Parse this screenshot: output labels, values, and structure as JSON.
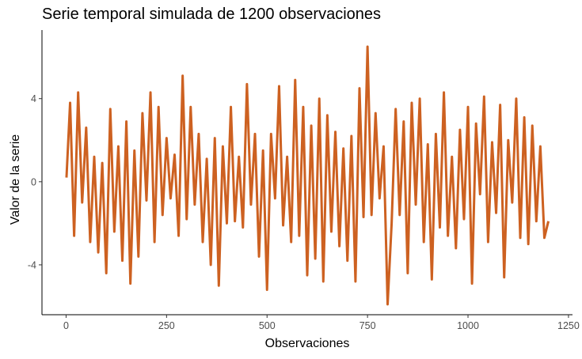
{
  "chart_data": {
    "type": "line",
    "title": "Serie temporal simulada de 1200 observaciones",
    "xlabel": "Observaciones",
    "ylabel": "Valor de la serie",
    "xlim": [
      -60,
      1260
    ],
    "ylim": [
      -6.4,
      7.3
    ],
    "x_ticks": [
      0,
      250,
      500,
      750,
      1000,
      1250
    ],
    "x_tick_labels": [
      "0",
      "250",
      "500",
      "750",
      "1000",
      "1250"
    ],
    "y_ticks": [
      -4,
      0,
      4
    ],
    "y_tick_labels": [
      "-4",
      "0",
      "4"
    ],
    "grid": false,
    "legend": "none",
    "color": "#cd6121",
    "series": [
      {
        "x": [
          1,
          10,
          20,
          30,
          40,
          50,
          60,
          70,
          80,
          90,
          100,
          110,
          120,
          130,
          140,
          150,
          160,
          170,
          180,
          190,
          200,
          210,
          220,
          230,
          240,
          250,
          260,
          270,
          280,
          290,
          300,
          310,
          320,
          330,
          340,
          350,
          360,
          370,
          380,
          390,
          400,
          410,
          420,
          430,
          440,
          450,
          460,
          470,
          480,
          490,
          500,
          510,
          520,
          530,
          540,
          550,
          560,
          570,
          580,
          590,
          600,
          610,
          620,
          630,
          640,
          650,
          660,
          670,
          680,
          690,
          700,
          710,
          720,
          730,
          740,
          750,
          760,
          770,
          780,
          790,
          800,
          810,
          820,
          830,
          840,
          850,
          860,
          870,
          880,
          890,
          900,
          910,
          920,
          930,
          940,
          950,
          960,
          970,
          980,
          990,
          1000,
          1010,
          1020,
          1030,
          1040,
          1050,
          1060,
          1070,
          1080,
          1090,
          1100,
          1110,
          1120,
          1130,
          1140,
          1150,
          1160,
          1170,
          1180,
          1190,
          1200
        ],
        "y": [
          0.2,
          3.8,
          -2.6,
          4.3,
          -1.0,
          2.6,
          -2.9,
          1.2,
          -3.4,
          0.9,
          -4.4,
          3.5,
          -2.4,
          1.7,
          -3.8,
          2.9,
          -4.9,
          1.5,
          -3.6,
          3.3,
          -0.9,
          4.3,
          -2.9,
          3.6,
          -1.6,
          2.1,
          -0.8,
          1.3,
          -2.6,
          5.1,
          -1.8,
          3.6,
          -1.1,
          2.3,
          -2.9,
          1.1,
          -4.0,
          2.1,
          -5.0,
          1.7,
          -2.0,
          3.6,
          -1.9,
          1.2,
          -2.2,
          4.7,
          -1.1,
          2.3,
          -3.6,
          1.5,
          -5.2,
          2.3,
          -0.8,
          4.6,
          -2.1,
          1.2,
          -2.9,
          4.9,
          -2.6,
          3.6,
          -4.5,
          2.7,
          -3.7,
          4.0,
          -4.8,
          3.2,
          -2.4,
          2.4,
          -3.1,
          1.6,
          -3.8,
          2.2,
          -4.8,
          4.5,
          -1.7,
          6.5,
          -1.6,
          3.3,
          -0.8,
          1.7,
          -5.9,
          -2.0,
          3.5,
          -1.6,
          2.9,
          -4.4,
          3.8,
          -1.1,
          4.0,
          -2.9,
          1.8,
          -4.7,
          2.3,
          -2.2,
          4.3,
          -2.6,
          1.2,
          -3.2,
          2.5,
          -1.8,
          3.6,
          -4.9,
          2.8,
          -0.6,
          4.1,
          -2.9,
          1.9,
          -1.5,
          3.7,
          -4.6,
          2.0,
          -1.0,
          4.0,
          -2.7,
          3.1,
          -3.0,
          2.7,
          -1.9,
          1.7,
          -2.7,
          -1.9
        ]
      }
    ]
  }
}
